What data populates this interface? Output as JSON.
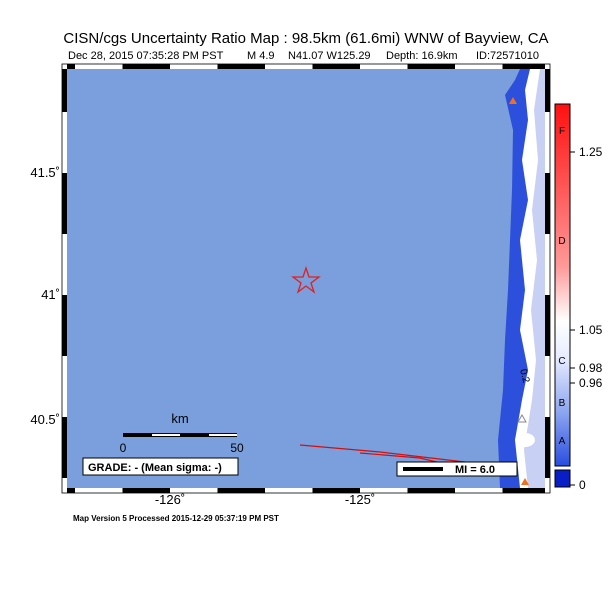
{
  "header": {
    "title": "CISN/cgs Uncertainty Ratio Map : 98.5km (61.6mi) WNW of Bayview, CA",
    "subtitle": [
      "Dec 28, 2015 07:35:28 PM PST",
      "M 4.9",
      "N41.07 W125.29",
      "Depth: 16.9km",
      "ID:72571010"
    ]
  },
  "map": {
    "lat_labels": [
      "41.5˚",
      "41˚",
      "40.5˚"
    ],
    "lon_labels": [
      "-126˚",
      "-125˚"
    ],
    "contour_label": "0.2",
    "scale": {
      "unit": "km",
      "labels": [
        "0",
        "50"
      ]
    },
    "grade": "GRADE: - (Mean sigma: -)",
    "mi": "MI = 6.0"
  },
  "colorbar": {
    "grades": [
      "F",
      "D",
      "C",
      "B",
      "A"
    ],
    "ticks": [
      "1.25",
      "1.05",
      "0.98",
      "0.96",
      "0"
    ]
  },
  "footer": "Map Version 5 Processed 2015-12-29 05:37:19 PM PST"
}
